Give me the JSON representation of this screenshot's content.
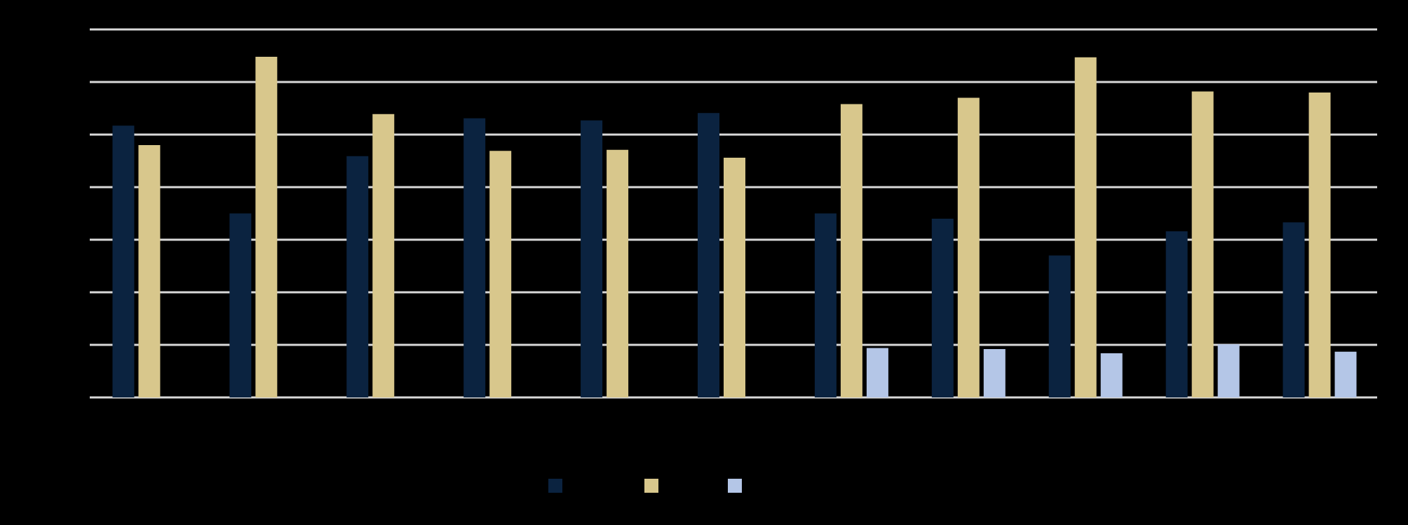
{
  "chart_data": {
    "type": "bar",
    "title": "",
    "xlabel": "",
    "ylabel": "",
    "ylim": [
      0,
      7
    ],
    "grid": true,
    "legend_position": "bottom",
    "categories": [
      "",
      "",
      "",
      "",
      "",
      "",
      "",
      "",
      "",
      "",
      ""
    ],
    "series": [
      {
        "name": "",
        "color": "#0b2340",
        "values": [
          5.17,
          3.5,
          4.59,
          5.31,
          5.27,
          5.41,
          3.5,
          3.4,
          2.7,
          3.16,
          3.33
        ]
      },
      {
        "name": "",
        "color": "#d8c78c",
        "values": [
          4.8,
          6.48,
          5.39,
          4.69,
          4.71,
          4.56,
          5.58,
          5.7,
          6.47,
          5.82,
          5.8
        ]
      },
      {
        "name": "",
        "color": "#b4c6e7",
        "values": [
          null,
          null,
          null,
          null,
          null,
          null,
          0.94,
          0.92,
          0.84,
          1.01,
          0.87
        ]
      }
    ],
    "colors": {
      "background": "#000000",
      "gridline": "#d9d9d9"
    }
  }
}
